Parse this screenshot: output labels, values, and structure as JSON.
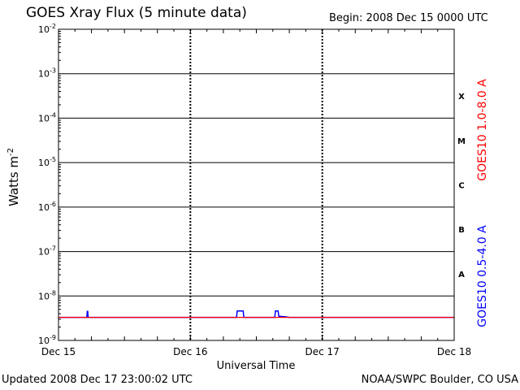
{
  "header": {
    "title": "GOES Xray Flux (5 minute data)",
    "begin": "Begin:  2008 Dec 15 0000 UTC"
  },
  "footer": {
    "updated": "Updated 2008 Dec 17 23:00:02 UTC",
    "credit": "NOAA/SWPC Boulder, CO USA"
  },
  "chart_data": {
    "type": "line",
    "title": "GOES Xray Flux (5 minute data)",
    "xlabel": "Universal Time",
    "ylabel": "Watts m^-2",
    "ylog": true,
    "ylim": [
      1e-09,
      0.01
    ],
    "x_ticks": [
      "Dec 15",
      "Dec 16",
      "Dec 17",
      "Dec 18"
    ],
    "xlim_days": [
      0,
      3
    ],
    "y_ticks": [
      {
        "base": "10",
        "exp": "-9"
      },
      {
        "base": "10",
        "exp": "-8"
      },
      {
        "base": "10",
        "exp": "-7"
      },
      {
        "base": "10",
        "exp": "-6"
      },
      {
        "base": "10",
        "exp": "-5"
      },
      {
        "base": "10",
        "exp": "-4"
      },
      {
        "base": "10",
        "exp": "-3"
      },
      {
        "base": "10",
        "exp": "-2"
      }
    ],
    "flare_classes": [
      {
        "label": "X",
        "level_exp": -4
      },
      {
        "label": "M",
        "level_exp": -5
      },
      {
        "label": "C",
        "level_exp": -6
      },
      {
        "label": "B",
        "level_exp": -7
      },
      {
        "label": "A",
        "level_exp": -8
      }
    ],
    "grid": true,
    "series": [
      {
        "name": "GOES10 1.0-8.0 A",
        "color": "#ff0000",
        "points": [
          [
            0,
            3.3e-09
          ],
          [
            3,
            3.3e-09
          ]
        ]
      },
      {
        "name": "GOES10 0.5-4.0 A",
        "color": "#0000ff",
        "points": [
          [
            0,
            3.3e-09
          ],
          [
            0.215,
            3.3e-09
          ],
          [
            0.218,
            4.5e-09
          ],
          [
            0.222,
            4.5e-09
          ],
          [
            0.225,
            3.3e-09
          ],
          [
            1.35,
            3.3e-09
          ],
          [
            1.355,
            4.6e-09
          ],
          [
            1.4,
            4.6e-09
          ],
          [
            1.405,
            3.3e-09
          ],
          [
            1.64,
            3.3e-09
          ],
          [
            1.645,
            4.6e-09
          ],
          [
            1.665,
            4.6e-09
          ],
          [
            1.67,
            3.5e-09
          ],
          [
            1.72,
            3.4e-09
          ],
          [
            1.75,
            3.3e-09
          ],
          [
            3,
            3.3e-09
          ]
        ]
      }
    ]
  }
}
